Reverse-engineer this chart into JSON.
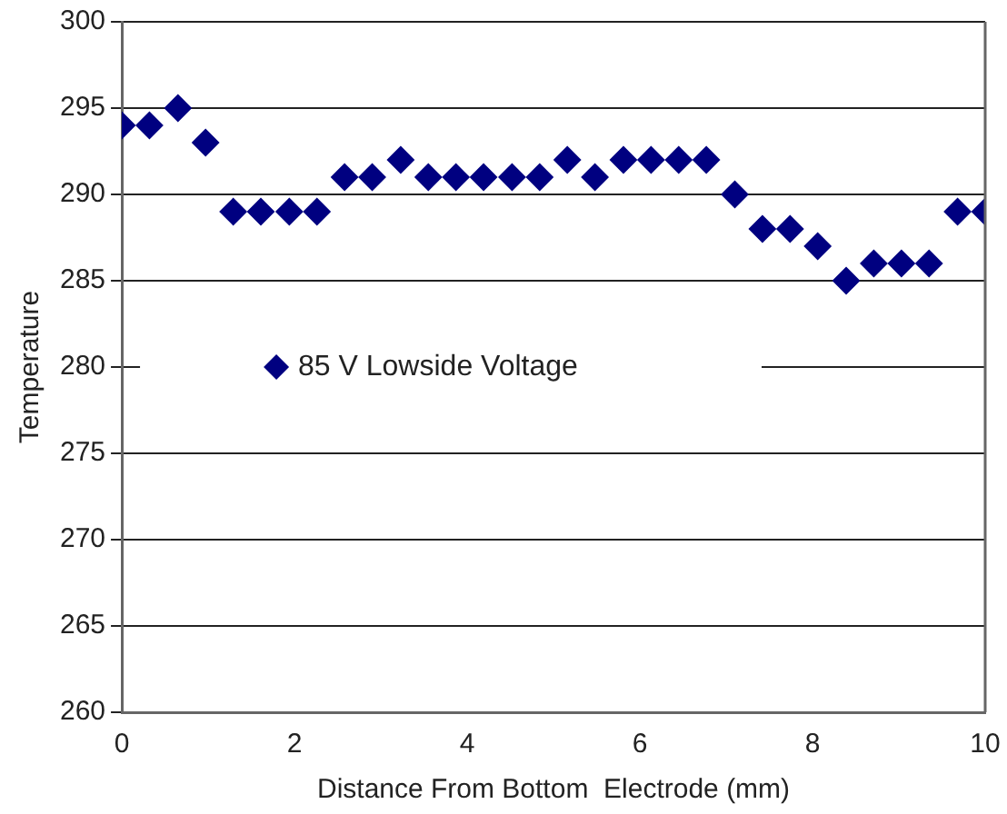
{
  "chart_data": {
    "type": "scatter",
    "xlabel": "Distance From Bottom  Electrode (mm)",
    "ylabel": "Temperature",
    "x": [
      0,
      0.32,
      0.65,
      0.97,
      1.29,
      1.61,
      1.94,
      2.26,
      2.58,
      2.9,
      3.23,
      3.55,
      3.87,
      4.19,
      4.52,
      4.84,
      5.16,
      5.48,
      5.81,
      6.13,
      6.45,
      6.77,
      7.1,
      7.42,
      7.74,
      8.06,
      8.39,
      8.71,
      9.03,
      9.35,
      9.68,
      10
    ],
    "series": [
      {
        "name": "85 V Lowside Voltage",
        "color": "#000080",
        "values": [
          294,
          294,
          295,
          293,
          289,
          289,
          289,
          289,
          291,
          291,
          292,
          291,
          291,
          291,
          291,
          291,
          292,
          291,
          292,
          292,
          292,
          292,
          290,
          288,
          288,
          287,
          285,
          286,
          286,
          286,
          289,
          289
        ]
      }
    ],
    "xlim": [
      0,
      10
    ],
    "xticks": [
      0,
      2,
      4,
      6,
      8,
      10
    ],
    "ylim": [
      260,
      300
    ],
    "yticks": [
      260,
      265,
      270,
      275,
      280,
      285,
      290,
      295,
      300
    ],
    "grid": "y",
    "legend": "left",
    "marker": "diamond"
  }
}
